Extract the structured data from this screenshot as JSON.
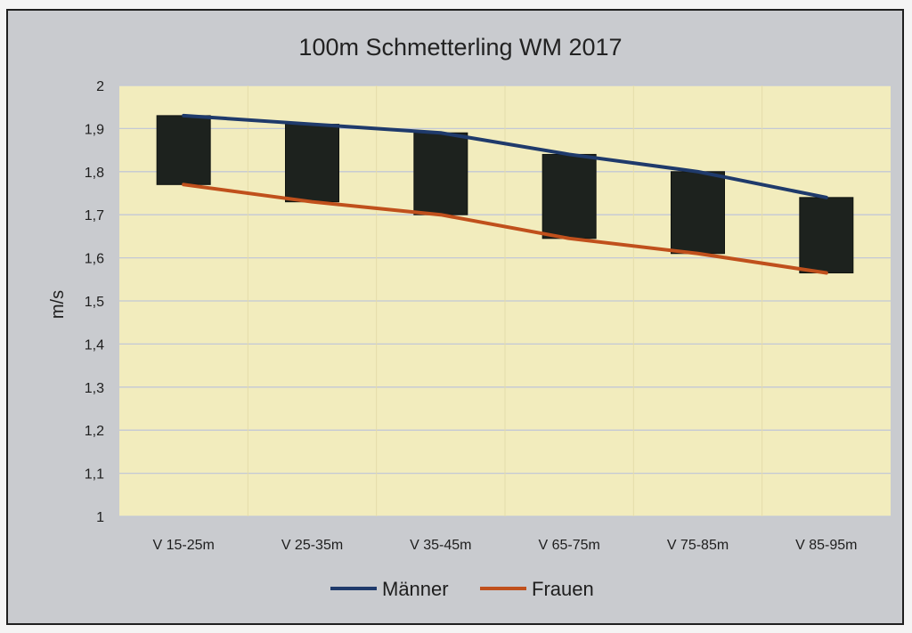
{
  "chart_data": {
    "type": "line",
    "title": "100m Schmetterling WM 2017",
    "xlabel": "",
    "ylabel": "m/s",
    "categories": [
      "V 15-25m",
      "V 25-35m",
      "V 35-45m",
      "V 65-75m",
      "V 75-85m",
      "V 85-95m"
    ],
    "series": [
      {
        "name": "Männer",
        "values": [
          1.93,
          1.91,
          1.89,
          1.84,
          1.8,
          1.74
        ],
        "color": "#1f3a6b"
      },
      {
        "name": "Frauen",
        "values": [
          1.77,
          1.73,
          1.7,
          1.645,
          1.61,
          1.565
        ],
        "color": "#c0501c"
      }
    ],
    "up_down_bars": true,
    "ylim": [
      1,
      2
    ],
    "yticks": [
      "1",
      "1,1",
      "1,2",
      "1,3",
      "1,4",
      "1,5",
      "1,6",
      "1,7",
      "1,8",
      "1,9",
      "2"
    ],
    "grid": true,
    "legend_position": "bottom",
    "colors": {
      "plot_area": "#f2ecbd",
      "background": "#c9cbcf",
      "gridline": "#c3c8d6",
      "bar": "#1d221e"
    }
  }
}
